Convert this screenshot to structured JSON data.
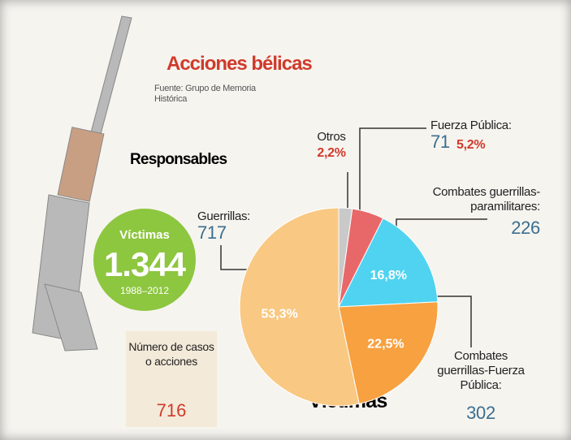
{
  "chart_data": {
    "type": "pie",
    "title": "Acciones bélicas",
    "source": "Fuente: Grupo de Memoria Histórica",
    "subtitle": "Responsables",
    "label": "Víctimas",
    "categories": [
      "Otros",
      "Fuerza Pública:",
      "Combates guerrillas-paramilitares:",
      "Combates guerrillas-Fuerza Pública:",
      "Guerrillas:"
    ],
    "values": [
      2.2,
      5.2,
      16.8,
      22.5,
      53.3
    ],
    "value_labels": [
      "2,2%",
      "5,2%",
      "16,8%",
      "22,5%",
      "53,3%"
    ],
    "counts": [
      null,
      71,
      226,
      302,
      717
    ],
    "colors": [
      "#c9c9c9",
      "#e8686a",
      "#4fd3f0",
      "#f7a141",
      "#f9c882"
    ]
  },
  "summary": {
    "label": "Víctimas",
    "total": {
      "value": 1344,
      "label": "1.344"
    },
    "period": "1988–2012"
  },
  "cases": {
    "label": "Número de casos o acciones",
    "value": 716
  }
}
